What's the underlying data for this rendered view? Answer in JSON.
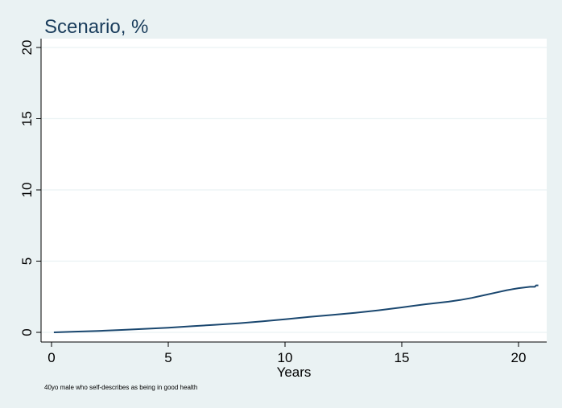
{
  "chart_data": {
    "type": "line",
    "title": "Scenario, %",
    "xlabel": "Years",
    "ylabel": "",
    "note": "40yo male who self-describes as being in good health",
    "xlim": [
      0,
      21
    ],
    "ylim": [
      0,
      20
    ],
    "xticks": [
      0,
      5,
      10,
      15,
      20
    ],
    "yticks": [
      0,
      5,
      10,
      15,
      20
    ],
    "grid": true,
    "colors": {
      "line": "#1a476f",
      "title": "#1a3d5c",
      "background": "#eaf2f3",
      "plot": "#ffffff",
      "grid": "#eaf2f3"
    },
    "series": [
      {
        "x": [
          0.1,
          1,
          2,
          3,
          4,
          5,
          6,
          7,
          8,
          9,
          10,
          11,
          12,
          13,
          14,
          15,
          16,
          17,
          17.5,
          18,
          18.5,
          19,
          19.5,
          20,
          20.5,
          20.7,
          20.75,
          20.85
        ],
        "y": [
          0.0,
          0.05,
          0.1,
          0.17,
          0.25,
          0.33,
          0.43,
          0.53,
          0.64,
          0.77,
          0.92,
          1.08,
          1.22,
          1.37,
          1.55,
          1.75,
          1.97,
          2.15,
          2.27,
          2.42,
          2.6,
          2.78,
          2.96,
          3.1,
          3.2,
          3.2,
          3.3,
          3.3
        ]
      }
    ]
  }
}
